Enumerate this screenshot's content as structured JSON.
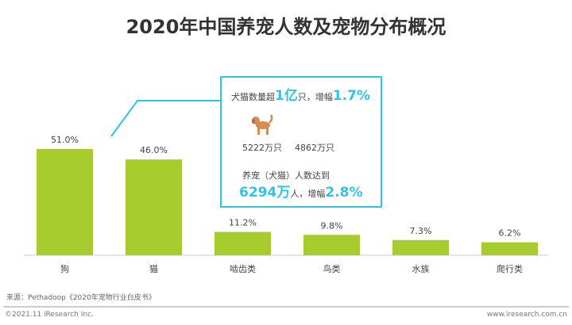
{
  "title": "2020年中国养宠人数及宠物分布概况",
  "chart_data": {
    "type": "bar",
    "categories": [
      "狗",
      "猫",
      "啮齿类",
      "鸟类",
      "水族",
      "爬行类"
    ],
    "values": [
      51.0,
      46.0,
      11.2,
      9.8,
      7.3,
      6.2
    ],
    "data_labels": [
      "51.0%",
      "46.0%",
      "11.2%",
      "9.8%",
      "7.3%",
      "6.2%"
    ],
    "ylim": [
      0,
      60
    ],
    "grid": false,
    "bar_color": "#a6cc2e"
  },
  "callout": {
    "line1_pre": "犬猫数量超",
    "line1_big1": "1亿",
    "line1_mid": "只，增幅",
    "line1_big2": "1.7%",
    "dog_icon": "dog-icon",
    "dog_count": "5222万只",
    "cat_count": "4862万只",
    "line3": "养宠（犬猫）人数达到",
    "line4_big1": "6294万",
    "line4_mid": "人，增幅",
    "line4_big2": "2.8%",
    "accent": "#2ec4e8"
  },
  "footer": {
    "source": "来源：Pethadoop《2020年宠物行业白皮书》",
    "copyright": "©2021.11 iResearch Inc.",
    "site": "www.iresearch.com.cn"
  }
}
